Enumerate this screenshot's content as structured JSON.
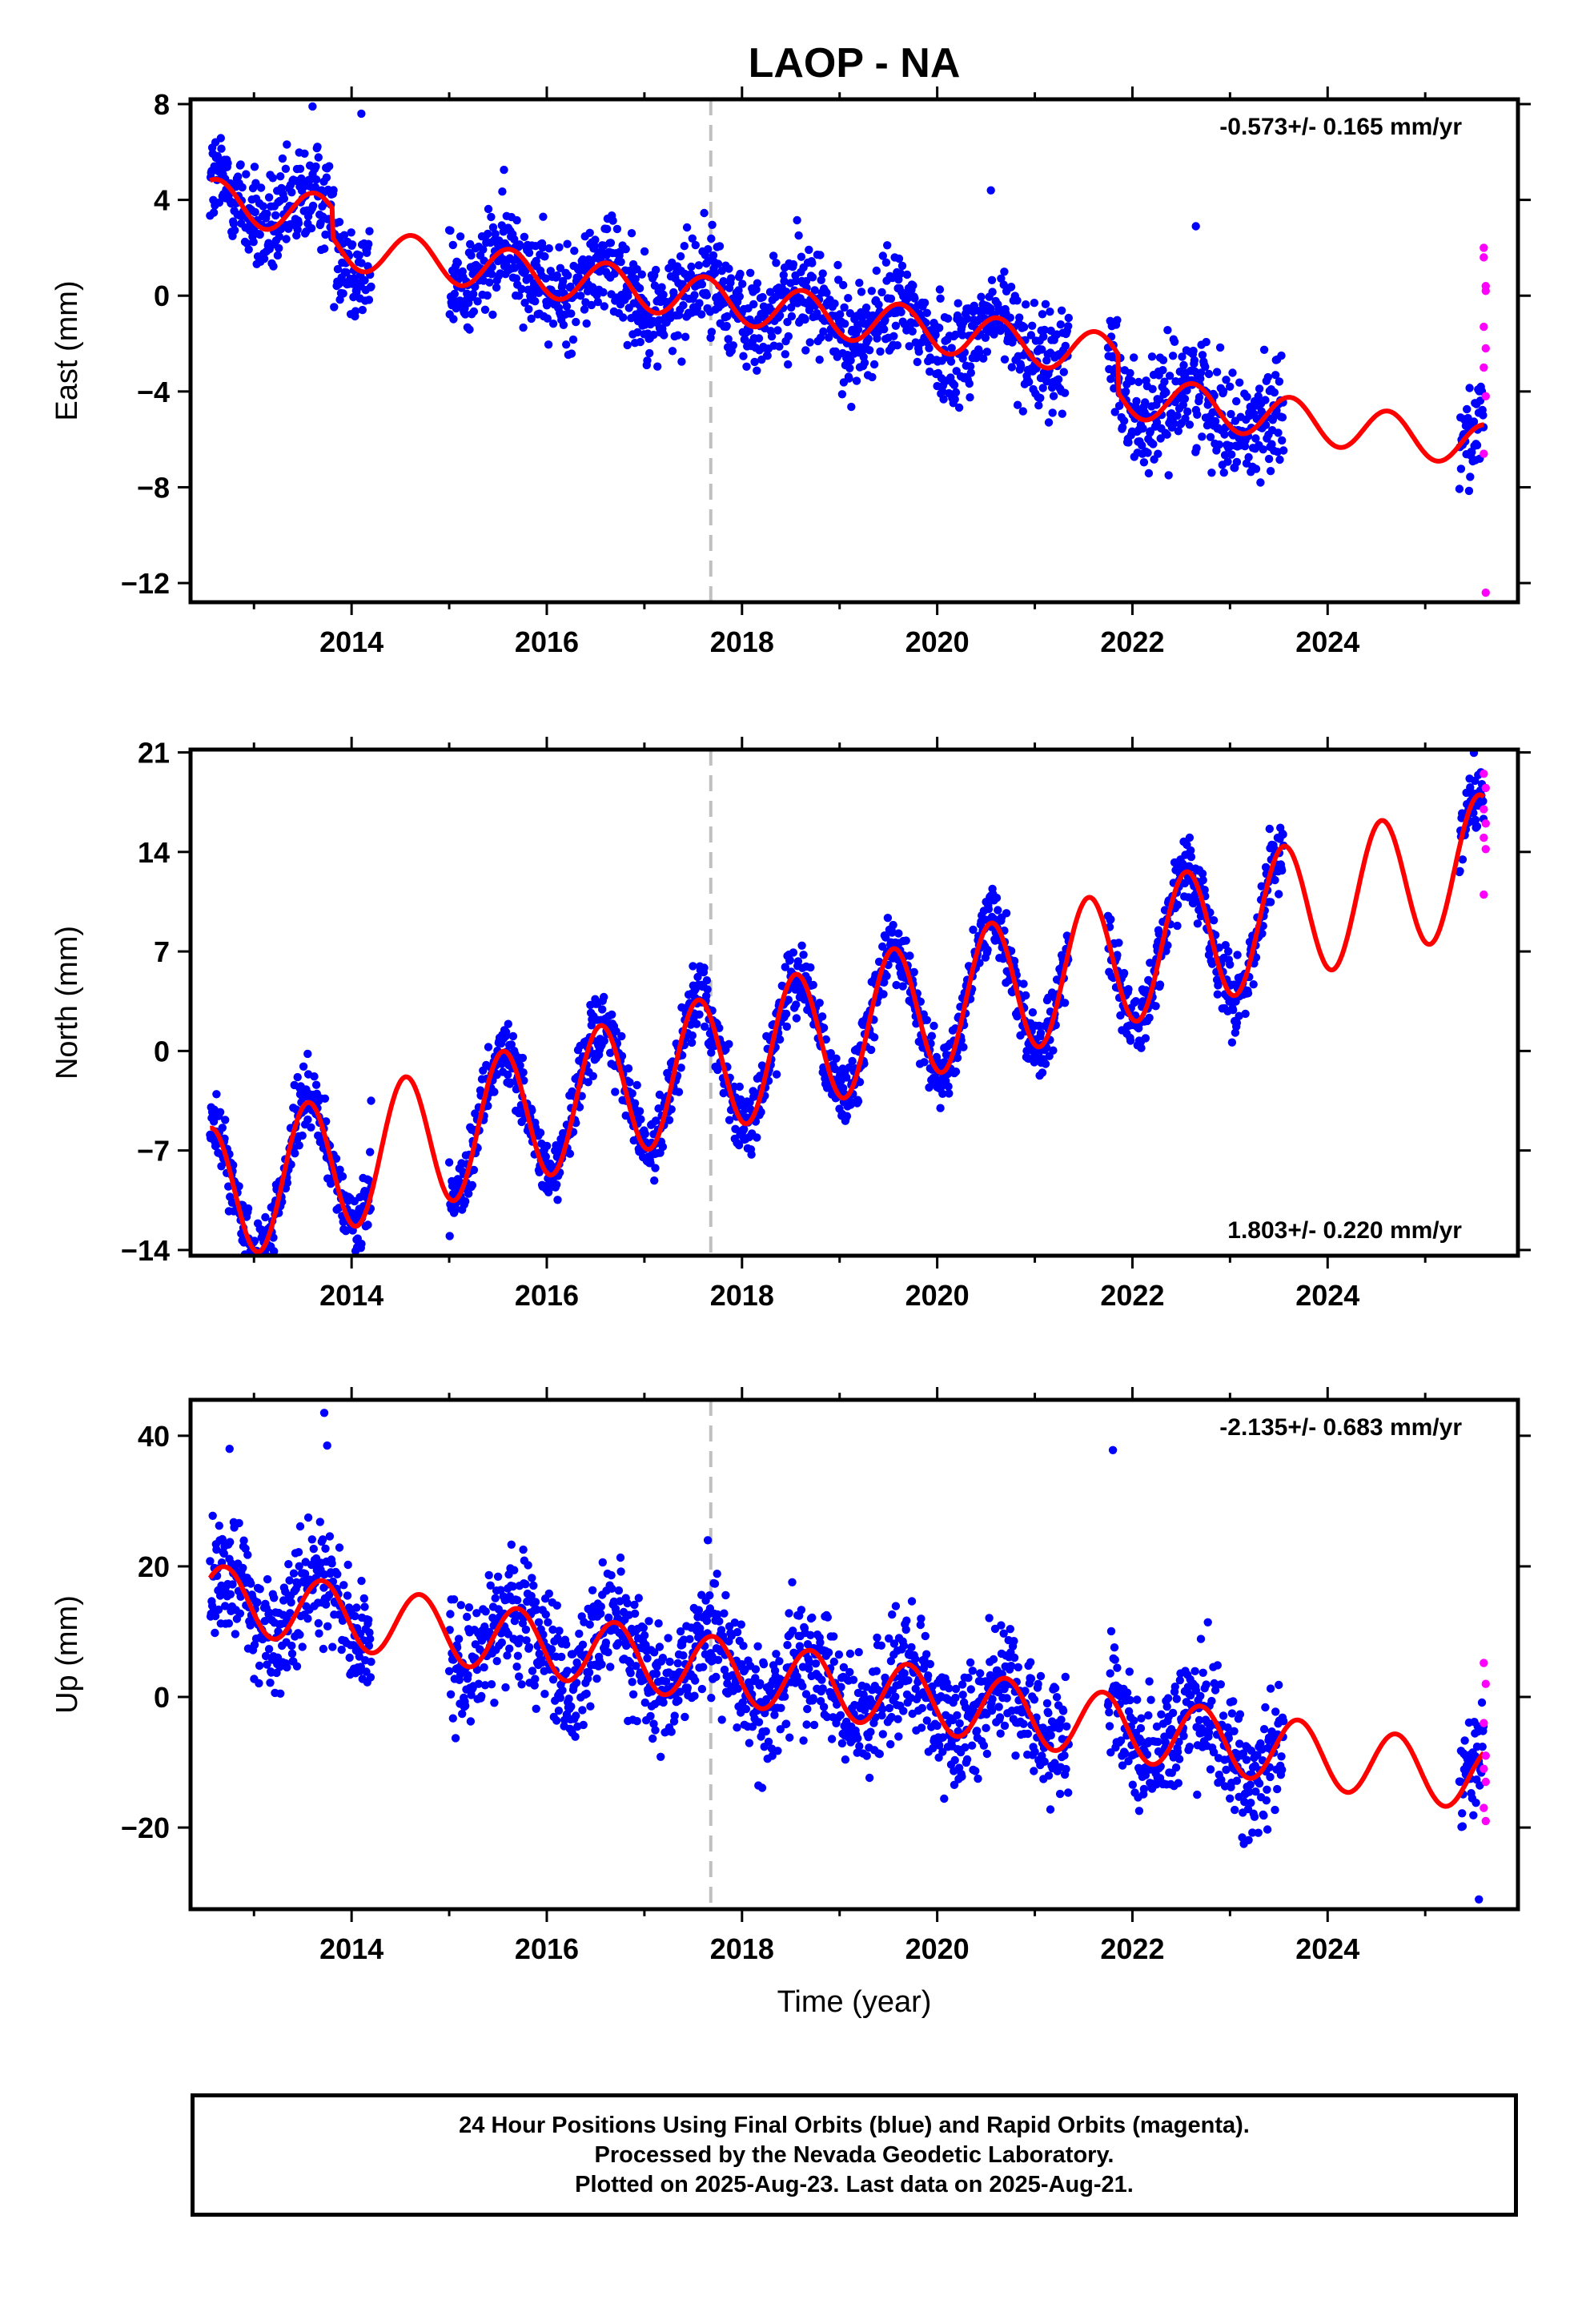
{
  "title": "LAOP - NA",
  "xlabel": "Time (year)",
  "footer": {
    "line1": "24 Hour Positions Using Final Orbits (blue) and Rapid Orbits (magenta).",
    "line2": "Processed by the Nevada Geodetic Laboratory.",
    "line3": "Plotted on 2025-Aug-23. Last data on 2025-Aug-21."
  },
  "colors": {
    "final_orbits": "#0000ff",
    "rapid_orbits": "#ff00ff",
    "model_fit": "#ff0000",
    "event_line": "#c0c0c0"
  },
  "chart_data": [
    {
      "type": "scatter",
      "ylabel": "East (mm)",
      "rate_label": "-0.573+/- 0.165 mm/yr",
      "rate_position": "top-right",
      "xlim": [
        2012.35,
        2025.95
      ],
      "ylim": [
        -12.8,
        8.2
      ],
      "xticks": [
        2014,
        2016,
        2018,
        2020,
        2022,
        2024
      ],
      "yticks": [
        8,
        4,
        0,
        -4,
        -8,
        -12
      ],
      "ytick_labels": [
        "8",
        "4",
        "0",
        "−4",
        "−8",
        "−12"
      ],
      "event_line_x": 2017.68,
      "grid": false,
      "trend": {
        "t0": 2019,
        "offset": 0.3,
        "rate": -0.573
      },
      "seasonal": {
        "amplitude": 0.9,
        "phase_year": 0.62
      },
      "steps": [
        {
          "x": 2013.8,
          "dy": -1.2
        },
        {
          "x": 2021.85,
          "dy": -1.6
        }
      ],
      "noise": 1.1,
      "outliers": [
        {
          "x": 2013.6,
          "y": 7.9
        },
        {
          "x": 2014.1,
          "y": 7.6
        },
        {
          "x": 2022.65,
          "y": 2.9
        },
        {
          "x": 2020.55,
          "y": 4.4
        }
      ],
      "final_segments": [
        [
          2012.55,
          2014.2
        ],
        [
          2015.0,
          2021.35
        ],
        [
          2021.75,
          2023.55
        ],
        [
          2025.35,
          2025.6
        ]
      ],
      "rapid": [
        {
          "x": 2025.6,
          "y": 2.0
        },
        {
          "x": 2025.6,
          "y": 1.6
        },
        {
          "x": 2025.62,
          "y": 0.4
        },
        {
          "x": 2025.62,
          "y": 0.2
        },
        {
          "x": 2025.6,
          "y": -1.3
        },
        {
          "x": 2025.62,
          "y": -2.2
        },
        {
          "x": 2025.6,
          "y": -3.0
        },
        {
          "x": 2025.62,
          "y": -4.2
        },
        {
          "x": 2025.6,
          "y": -6.6
        },
        {
          "x": 2025.62,
          "y": -12.4
        }
      ]
    },
    {
      "type": "scatter",
      "ylabel": "North (mm)",
      "rate_label": "1.803+/- 0.220 mm/yr",
      "rate_position": "bottom-right",
      "xlim": [
        2012.35,
        2025.95
      ],
      "ylim": [
        -14.4,
        21.2
      ],
      "xticks": [
        2014,
        2016,
        2018,
        2020,
        2022,
        2024
      ],
      "yticks": [
        21,
        14,
        7,
        0,
        -7,
        -14
      ],
      "ytick_labels": [
        "21",
        "14",
        "7",
        "0",
        "−7",
        "−14"
      ],
      "event_line_x": 2017.68,
      "grid": false,
      "trend": {
        "t0": 2019,
        "offset": 1.4,
        "rate": 1.803
      },
      "seasonal": {
        "amplitude": 4.8,
        "phase_year": 0.55
      },
      "steps": [],
      "noise": 1.2,
      "outliers": [
        {
          "x": 2013.55,
          "y": -0.2
        },
        {
          "x": 2014.2,
          "y": -3.5
        },
        {
          "x": 2017.5,
          "y": 4.6
        }
      ],
      "final_segments": [
        [
          2012.55,
          2014.2
        ],
        [
          2015.0,
          2021.35
        ],
        [
          2021.75,
          2023.55
        ],
        [
          2025.35,
          2025.6
        ]
      ],
      "rapid": [
        {
          "x": 2025.6,
          "y": 19.5
        },
        {
          "x": 2025.62,
          "y": 18.5
        },
        {
          "x": 2025.6,
          "y": 17.0
        },
        {
          "x": 2025.62,
          "y": 16.0
        },
        {
          "x": 2025.6,
          "y": 15.0
        },
        {
          "x": 2025.62,
          "y": 14.2
        },
        {
          "x": 2025.6,
          "y": 11.0
        }
      ]
    },
    {
      "type": "scatter",
      "ylabel": "Up (mm)",
      "rate_label": "-2.135+/- 0.683 mm/yr",
      "rate_position": "top-right",
      "xlim": [
        2012.35,
        2025.95
      ],
      "ylim": [
        -32.5,
        45.5
      ],
      "xticks": [
        2014,
        2016,
        2018,
        2020,
        2022,
        2024
      ],
      "yticks": [
        40,
        20,
        0,
        -20
      ],
      "ytick_labels": [
        "40",
        "20",
        "0",
        "−20"
      ],
      "event_line_x": 2017.68,
      "grid": false,
      "trend": {
        "t0": 2019,
        "offset": 1.5,
        "rate": -2.135
      },
      "seasonal": {
        "amplitude": 5.0,
        "phase_year": 0.7
      },
      "steps": [],
      "noise": 4.6,
      "outliers": [
        {
          "x": 2013.72,
          "y": 43.5
        },
        {
          "x": 2013.75,
          "y": 38.5
        },
        {
          "x": 2012.75,
          "y": 38.0
        },
        {
          "x": 2021.8,
          "y": 37.8
        },
        {
          "x": 2017.65,
          "y": 24.0
        },
        {
          "x": 2025.55,
          "y": -31.0
        }
      ],
      "final_segments": [
        [
          2012.55,
          2014.2
        ],
        [
          2015.0,
          2021.35
        ],
        [
          2021.75,
          2023.55
        ],
        [
          2025.35,
          2025.6
        ]
      ],
      "rapid": [
        {
          "x": 2025.6,
          "y": 5.2
        },
        {
          "x": 2025.62,
          "y": 2.0
        },
        {
          "x": 2025.6,
          "y": -4.0
        },
        {
          "x": 2025.62,
          "y": -9.0
        },
        {
          "x": 2025.6,
          "y": -11.0
        },
        {
          "x": 2025.62,
          "y": -13.0
        },
        {
          "x": 2025.6,
          "y": -17.0
        },
        {
          "x": 2025.62,
          "y": -19.0
        }
      ]
    }
  ]
}
